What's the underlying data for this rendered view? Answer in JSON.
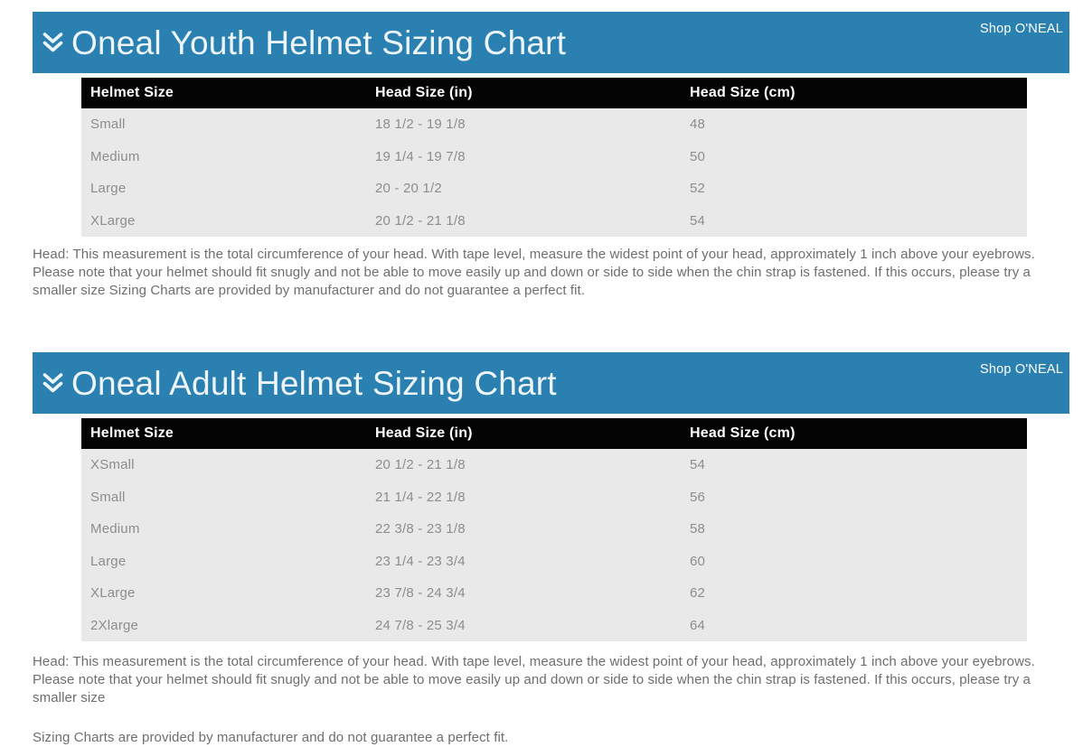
{
  "theme": {
    "accent_blue": "#2a80b0",
    "table_header_bg": "#040404",
    "row_bg": "#e9e9e9",
    "row_text": "#8d8d8d",
    "note_text": "#6e6e6e"
  },
  "sections": [
    {
      "title": "Oneal Youth Helmet Sizing Chart",
      "shop_link": "Shop O'NEAL",
      "columns": [
        "Helmet Size",
        "Head Size (in)",
        "Head Size (cm)"
      ],
      "rows": [
        [
          "Small",
          "18 1/2 - 19 1/8",
          "48"
        ],
        [
          "Medium",
          "19 1/4 - 19 7/8",
          "50"
        ],
        [
          "Large",
          "20 - 20 1/2",
          "52"
        ],
        [
          "XLarge",
          "20 1/2 - 21 1/8",
          "54"
        ]
      ],
      "note": "Head: This measurement is the total circumference of your head. With tape level, measure the widest point of your head, approximately 1 inch above your eyebrows. Please note that your helmet should fit snugly and not be able to move easily up and down or side to side when the chin strap is fastened. If this occurs, please try a smaller size Sizing Charts are provided by manufacturer and do not guarantee a perfect fit."
    },
    {
      "title": "Oneal Adult Helmet Sizing Chart",
      "shop_link": "Shop O'NEAL",
      "columns": [
        "Helmet Size",
        "Head Size (in)",
        "Head Size (cm)"
      ],
      "rows": [
        [
          "XSmall",
          "20 1/2 - 21 1/8",
          "54"
        ],
        [
          "Small",
          "21 1/4 - 22 1/8",
          "56"
        ],
        [
          "Medium",
          "22 3/8 - 23 1/8",
          "58"
        ],
        [
          "Large",
          "23 1/4 - 23 3/4",
          "60"
        ],
        [
          "XLarge",
          "23 7/8 - 24 3/4",
          "62"
        ],
        [
          "2Xlarge",
          "24 7/8 - 25 3/4",
          "64"
        ]
      ],
      "note": "Head: This measurement is the total circumference of your head. With tape level, measure the widest point of your head, approximately 1 inch above your eyebrows. Please note that your helmet should fit snugly and not be able to move easily up and down or side to side when the chin strap is fastened. If this occurs, please try a smaller size",
      "note2": "Sizing Charts are provided by manufacturer and do not guarantee a perfect fit."
    }
  ]
}
